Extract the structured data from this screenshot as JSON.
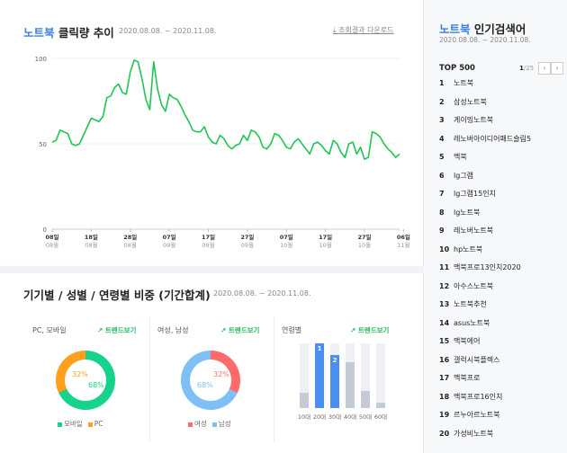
{
  "click_section": {
    "keyword": "노트북",
    "title_suffix": " 클릭량 추이",
    "date_range": "2020.08.08. ~ 2020.11.08.",
    "download_label": "조회결과 다운로드"
  },
  "chart_data": {
    "type": "line",
    "y_ticks": [
      "100",
      "50",
      "0"
    ],
    "ylim": [
      0,
      100
    ],
    "x_ticks": [
      {
        "day": "08일",
        "month": "08월"
      },
      {
        "day": "18일",
        "month": "08월"
      },
      {
        "day": "28일",
        "month": "08월"
      },
      {
        "day": "07일",
        "month": "09월"
      },
      {
        "day": "17일",
        "month": "09월"
      },
      {
        "day": "27일",
        "month": "09월"
      },
      {
        "day": "07일",
        "month": "10월"
      },
      {
        "day": "17일",
        "month": "10월"
      },
      {
        "day": "27일",
        "month": "10월"
      },
      {
        "day": "06일",
        "month": "11월"
      }
    ],
    "series": [
      {
        "color": "#1fc552",
        "values": [
          51,
          52,
          58,
          57,
          56,
          50,
          49,
          50,
          55,
          60,
          65,
          64,
          63,
          66,
          77,
          78,
          83,
          85,
          80,
          79,
          92,
          99,
          98,
          88,
          76,
          70,
          98,
          82,
          73,
          69,
          79,
          77,
          76,
          72,
          67,
          63,
          58,
          57,
          57,
          60,
          54,
          51,
          50,
          55,
          53,
          49,
          47,
          49,
          50,
          55,
          52,
          58,
          57,
          54,
          48,
          47,
          50,
          56,
          55,
          52,
          48,
          47,
          51,
          53,
          50,
          47,
          44,
          50,
          51,
          49,
          46,
          44,
          52,
          50,
          45,
          42,
          50,
          51,
          44,
          48,
          41,
          42,
          57,
          56,
          54,
          50,
          47,
          45,
          42,
          44
        ]
      }
    ]
  },
  "dist_section": {
    "title": "기기별 / 성별 / 연령별 비중 (기간합계)",
    "date_range": "2020.08.08. ~ 2020.11.08.",
    "trend_label": "트렌드보기",
    "device": {
      "title": "PC, 모바일",
      "pc_pct": "32%",
      "mobile_pct": "68%",
      "pc_value": 32,
      "legend_mobile": "모바일",
      "legend_pc": "PC",
      "mobile_color": "#17d28a",
      "pc_color": "#ff9f1c"
    },
    "gender": {
      "title": "여성, 남성",
      "female_pct": "32%",
      "male_pct": "68%",
      "female_value": 32,
      "legend_female": "여성",
      "legend_male": "남성",
      "female_color": "#ff6b6b",
      "male_color": "#7ec0f5"
    },
    "age": {
      "title": "연령별",
      "labels": [
        "10대",
        "20대",
        "30대",
        "40대",
        "50대",
        "60대"
      ],
      "values": [
        24,
        100,
        82,
        71,
        27,
        8
      ],
      "ranks": [
        "",
        "1",
        "2",
        "",
        "",
        ""
      ],
      "highlight_color": "#4a8ef0",
      "base_color": "#c4cad6"
    }
  },
  "sidebar": {
    "keyword": "노트북",
    "title_suffix": " 인기검색어",
    "date_range": "2020.08.08. ~ 2020.11.08.",
    "top_label": "TOP 500",
    "page_current": "1",
    "page_total": "/25",
    "items": [
      {
        "rank": "1",
        "name": "노트북"
      },
      {
        "rank": "2",
        "name": "삼성노트북"
      },
      {
        "rank": "3",
        "name": "게이밍노트북"
      },
      {
        "rank": "4",
        "name": "레노버아이디어패드슬림5"
      },
      {
        "rank": "5",
        "name": "맥북"
      },
      {
        "rank": "6",
        "name": "lg그램"
      },
      {
        "rank": "7",
        "name": "lg그램15인치"
      },
      {
        "rank": "8",
        "name": "lg노트북"
      },
      {
        "rank": "9",
        "name": "레노버노트북"
      },
      {
        "rank": "10",
        "name": "hp노트북"
      },
      {
        "rank": "11",
        "name": "맥북프로13인치2020"
      },
      {
        "rank": "12",
        "name": "아수스노트북"
      },
      {
        "rank": "13",
        "name": "노트북추천"
      },
      {
        "rank": "14",
        "name": "asus노트북"
      },
      {
        "rank": "15",
        "name": "맥북에어"
      },
      {
        "rank": "16",
        "name": "갤럭시북플렉스"
      },
      {
        "rank": "17",
        "name": "맥북프로"
      },
      {
        "rank": "18",
        "name": "맥북프로16인치"
      },
      {
        "rank": "19",
        "name": "르누아르노트북"
      },
      {
        "rank": "20",
        "name": "가성비노트북"
      }
    ]
  }
}
